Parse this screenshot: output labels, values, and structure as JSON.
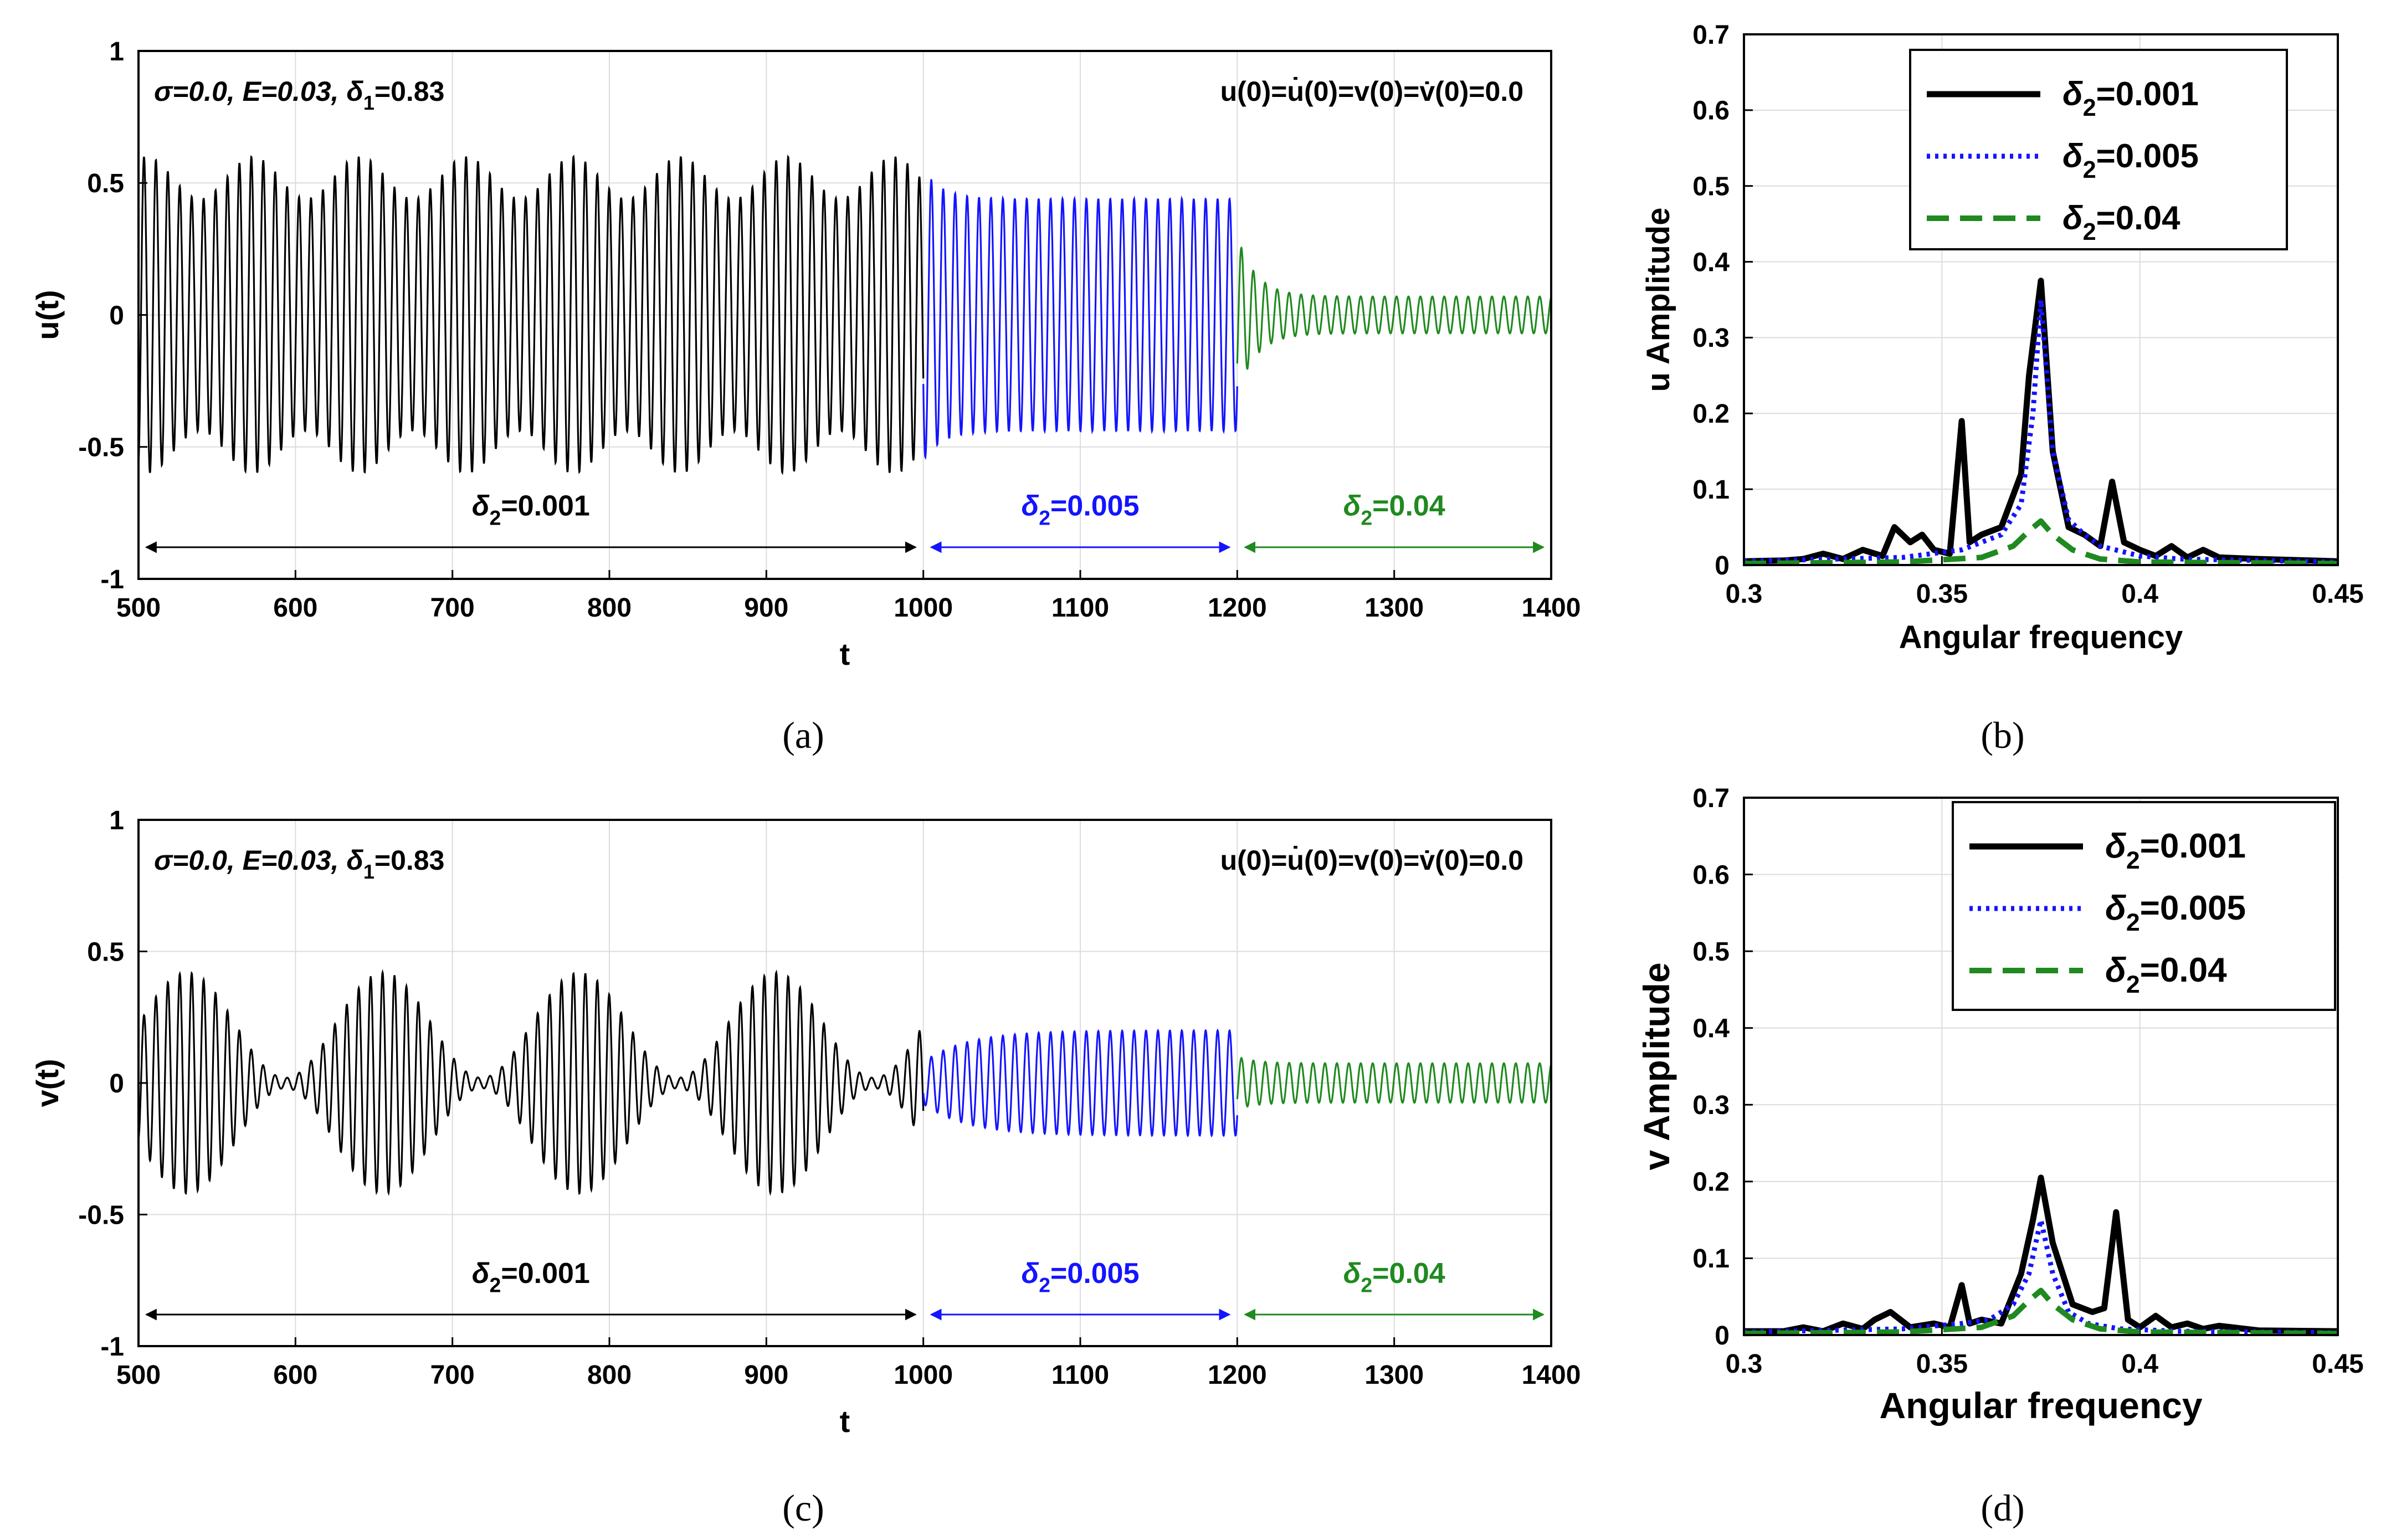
{
  "colors": {
    "black": "#000000",
    "blue": "#1414ff",
    "green": "#1f8a1f",
    "grid": "#dcdcdc"
  },
  "chart_data": [
    {
      "id": "a",
      "type": "line",
      "caption": "(a)",
      "ylabel": "u(t)",
      "xlabel": "t",
      "xlim": [
        500,
        1400
      ],
      "ylim": [
        -1,
        1
      ],
      "xticks": [
        500,
        600,
        700,
        800,
        900,
        1000,
        1100,
        1200,
        1300,
        1400
      ],
      "yticks": [
        -1,
        -0.5,
        0,
        0.5,
        1
      ],
      "annotation_left": {
        "pre": "σ=0.0, E=0.03, δ",
        "sub": "1",
        "post": "=0.83"
      },
      "annotation_right": "u(0)=u̇(0)=v(0)=v̇(0)=0.0",
      "segments": [
        {
          "label_pre": "δ",
          "label_sub": "2",
          "label_post": "=0.001",
          "x": [
            500,
            1000
          ],
          "color": "#000000",
          "envelope": {
            "type": "beat",
            "base": 0.52,
            "mod": 0.08,
            "beat_period": 68,
            "phase": 505
          },
          "oscillation_period": 7.6
        },
        {
          "label_pre": "δ",
          "label_sub": "2",
          "label_post": "=0.005",
          "x": [
            1000,
            1200
          ],
          "color": "#1414ff",
          "envelope": {
            "type": "decay",
            "start": 0.55,
            "settle": 0.44
          },
          "oscillation_period": 7.6
        },
        {
          "label_pre": "δ",
          "label_sub": "2",
          "label_post": "=0.04",
          "x": [
            1200,
            1400
          ],
          "color": "#1f8a1f",
          "envelope": {
            "type": "decay",
            "start": 0.3,
            "settle": 0.07
          },
          "oscillation_period": 7.6
        }
      ]
    },
    {
      "id": "b",
      "type": "line",
      "caption": "(b)",
      "ylabel": "u Amplitude",
      "xlabel": "Angular frequency",
      "xlim": [
        0.3,
        0.45
      ],
      "ylim": [
        0,
        0.7
      ],
      "xticks": [
        0.3,
        0.35,
        0.4,
        0.45
      ],
      "yticks": [
        0,
        0.1,
        0.2,
        0.3,
        0.4,
        0.5,
        0.6,
        0.7
      ],
      "legend_position": "top-right",
      "series": [
        {
          "name_pre": "δ",
          "name_sub": "2",
          "name_post": "=0.001",
          "color": "#000000",
          "style": "solid",
          "x": [
            0.3,
            0.31,
            0.315,
            0.32,
            0.325,
            0.33,
            0.335,
            0.338,
            0.342,
            0.345,
            0.348,
            0.352,
            0.355,
            0.357,
            0.36,
            0.365,
            0.37,
            0.372,
            0.375,
            0.378,
            0.382,
            0.386,
            0.39,
            0.393,
            0.396,
            0.4,
            0.404,
            0.408,
            0.412,
            0.416,
            0.42,
            0.43,
            0.45
          ],
          "y": [
            0.005,
            0.006,
            0.008,
            0.015,
            0.008,
            0.02,
            0.012,
            0.05,
            0.03,
            0.04,
            0.02,
            0.015,
            0.19,
            0.03,
            0.04,
            0.05,
            0.12,
            0.25,
            0.375,
            0.15,
            0.05,
            0.04,
            0.025,
            0.11,
            0.03,
            0.02,
            0.012,
            0.025,
            0.01,
            0.02,
            0.01,
            0.008,
            0.005
          ]
        },
        {
          "name_pre": "δ",
          "name_sub": "2",
          "name_post": "=0.005",
          "color": "#1414ff",
          "style": "dotted",
          "x": [
            0.3,
            0.34,
            0.355,
            0.36,
            0.365,
            0.37,
            0.373,
            0.375,
            0.378,
            0.382,
            0.386,
            0.39,
            0.4,
            0.41,
            0.45
          ],
          "y": [
            0.005,
            0.01,
            0.02,
            0.03,
            0.04,
            0.08,
            0.2,
            0.35,
            0.15,
            0.06,
            0.04,
            0.025,
            0.012,
            0.008,
            0.004
          ]
        },
        {
          "name_pre": "δ",
          "name_sub": "2",
          "name_post": "=0.04",
          "color": "#1f8a1f",
          "style": "dashed",
          "x": [
            0.3,
            0.34,
            0.36,
            0.368,
            0.372,
            0.375,
            0.378,
            0.383,
            0.39,
            0.4,
            0.45
          ],
          "y": [
            0.002,
            0.004,
            0.01,
            0.025,
            0.045,
            0.058,
            0.04,
            0.02,
            0.008,
            0.004,
            0.002
          ]
        }
      ]
    },
    {
      "id": "c",
      "type": "line",
      "caption": "(c)",
      "ylabel": "v(t)",
      "xlabel": "t",
      "xlim": [
        500,
        1400
      ],
      "ylim": [
        -1,
        1
      ],
      "xticks": [
        500,
        600,
        700,
        800,
        900,
        1000,
        1100,
        1200,
        1300,
        1400
      ],
      "yticks": [
        -1,
        -0.5,
        0,
        0.5,
        1
      ],
      "annotation_left": {
        "pre": "σ=0.0, E=0.03, δ",
        "sub": "1",
        "post": "=0.83"
      },
      "annotation_right": "u(0)=u̇(0)=v(0)=v̇(0)=0.0",
      "segments": [
        {
          "label_pre": "δ",
          "label_sub": "2",
          "label_post": "=0.001",
          "x": [
            500,
            1000
          ],
          "color": "#000000",
          "envelope": {
            "type": "beat",
            "base": 0.22,
            "mod": 0.2,
            "beat_period": 125,
            "phase": 531
          },
          "oscillation_period": 7.6
        },
        {
          "label_pre": "δ",
          "label_sub": "2",
          "label_post": "=0.005",
          "x": [
            1000,
            1200
          ],
          "color": "#1414ff",
          "envelope": {
            "type": "rise",
            "start": 0.08,
            "settle": 0.2
          },
          "oscillation_period": 7.6
        },
        {
          "label_pre": "δ",
          "label_sub": "2",
          "label_post": "=0.04",
          "x": [
            1200,
            1400
          ],
          "color": "#1f8a1f",
          "envelope": {
            "type": "decay",
            "start": 0.1,
            "settle": 0.075
          },
          "oscillation_period": 7.6
        }
      ]
    },
    {
      "id": "d",
      "type": "line",
      "caption": "(d)",
      "ylabel": "v Amplitude",
      "xlabel": "Angular frequency",
      "xlim": [
        0.3,
        0.45
      ],
      "ylim": [
        0,
        0.7
      ],
      "xticks": [
        0.3,
        0.35,
        0.4,
        0.45
      ],
      "yticks": [
        0,
        0.1,
        0.2,
        0.3,
        0.4,
        0.5,
        0.6,
        0.7
      ],
      "legend_position": "top-right",
      "series": [
        {
          "name_pre": "δ",
          "name_sub": "2",
          "name_post": "=0.001",
          "color": "#000000",
          "style": "solid",
          "x": [
            0.3,
            0.31,
            0.315,
            0.32,
            0.325,
            0.33,
            0.333,
            0.337,
            0.342,
            0.348,
            0.352,
            0.355,
            0.357,
            0.36,
            0.365,
            0.37,
            0.373,
            0.375,
            0.378,
            0.383,
            0.388,
            0.391,
            0.394,
            0.397,
            0.4,
            0.404,
            0.408,
            0.412,
            0.416,
            0.42,
            0.43,
            0.45
          ],
          "y": [
            0.005,
            0.005,
            0.01,
            0.005,
            0.015,
            0.008,
            0.02,
            0.03,
            0.01,
            0.015,
            0.01,
            0.065,
            0.015,
            0.02,
            0.015,
            0.08,
            0.15,
            0.205,
            0.12,
            0.04,
            0.03,
            0.035,
            0.16,
            0.02,
            0.01,
            0.025,
            0.01,
            0.015,
            0.008,
            0.012,
            0.006,
            0.005
          ]
        },
        {
          "name_pre": "δ",
          "name_sub": "2",
          "name_post": "=0.005",
          "color": "#1414ff",
          "style": "dotted",
          "x": [
            0.3,
            0.34,
            0.355,
            0.362,
            0.368,
            0.372,
            0.375,
            0.378,
            0.382,
            0.387,
            0.395,
            0.41,
            0.45
          ],
          "y": [
            0.004,
            0.008,
            0.015,
            0.02,
            0.04,
            0.08,
            0.15,
            0.08,
            0.03,
            0.015,
            0.008,
            0.005,
            0.003
          ]
        },
        {
          "name_pre": "δ",
          "name_sub": "2",
          "name_post": "=0.04",
          "color": "#1f8a1f",
          "style": "dashed",
          "x": [
            0.3,
            0.34,
            0.36,
            0.368,
            0.372,
            0.375,
            0.378,
            0.383,
            0.39,
            0.4,
            0.45
          ],
          "y": [
            0.002,
            0.004,
            0.01,
            0.025,
            0.045,
            0.058,
            0.04,
            0.02,
            0.008,
            0.004,
            0.002
          ]
        }
      ]
    }
  ]
}
